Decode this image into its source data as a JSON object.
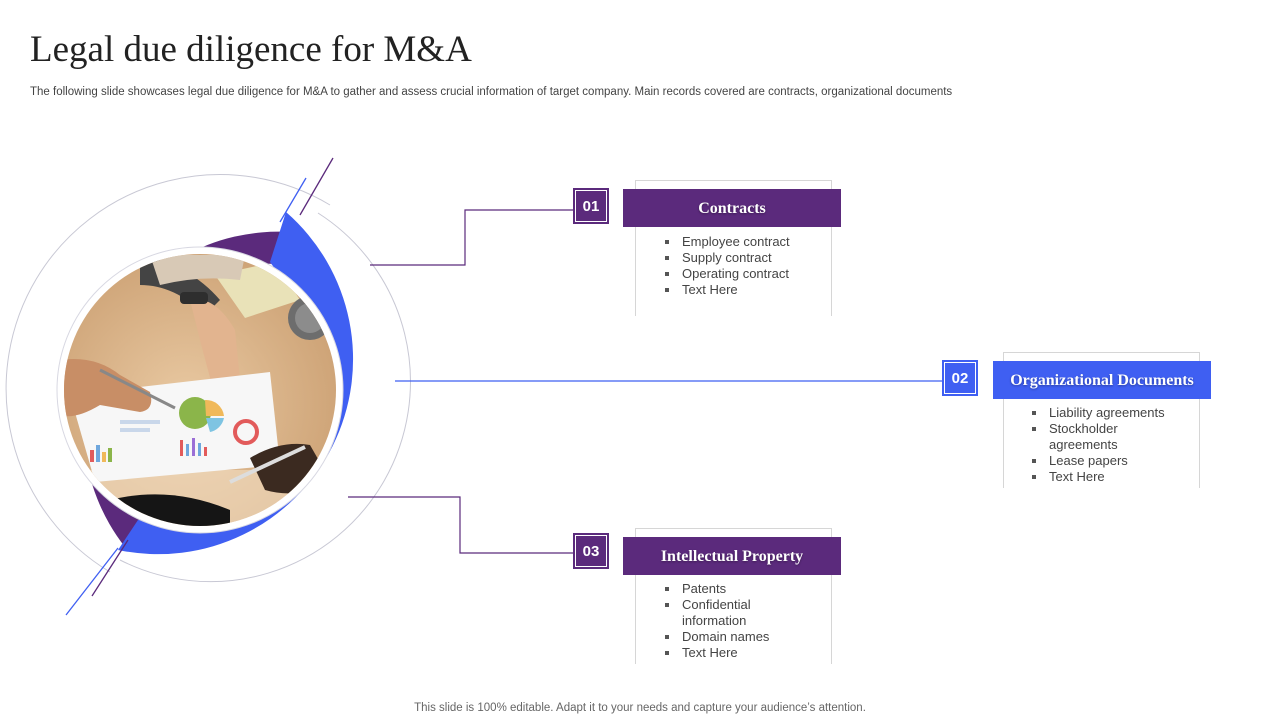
{
  "slide": {
    "title": "Legal due diligence for M&A",
    "subtitle": "The following slide showcases legal due diligence for M&A  to gather and assess crucial information of target company. Main records covered are contracts, organizational documents",
    "footer": "This slide is 100% editable. Adapt it to your needs and capture your audience’s attention."
  },
  "colors": {
    "purple": "#5b2a7c",
    "blue": "#3f5ff2"
  },
  "image": {
    "icon": "business-meeting-photo-icon"
  },
  "items": [
    {
      "number": "01",
      "heading": "Contracts",
      "bullets": [
        "Employee contract",
        "Supply contract",
        "Operating contract",
        "Text Here"
      ]
    },
    {
      "number": "02",
      "heading": "Organizational Documents",
      "bullets": [
        "Liability agreements",
        "Stockholder agreements",
        "Lease papers",
        "Text Here"
      ]
    },
    {
      "number": "03",
      "heading": "Intellectual Property",
      "bullets": [
        "Patents",
        "Confidential information",
        "Domain names",
        "Text Here"
      ]
    }
  ]
}
